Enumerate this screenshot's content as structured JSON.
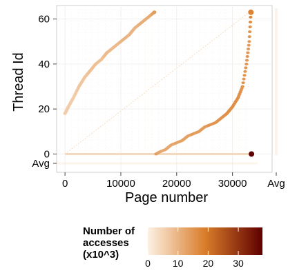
{
  "chart_data": {
    "type": "scatter",
    "xlabel": "Page number",
    "ylabel": "Thread Id",
    "x_ticks": [
      "0",
      "10000",
      "20000",
      "30000"
    ],
    "x_tick_values": [
      0,
      10000,
      20000,
      30000
    ],
    "x_summary_label": "Avg",
    "y_ticks": [
      "0",
      "20",
      "40",
      "60"
    ],
    "y_tick_values": [
      0,
      20,
      40,
      60
    ],
    "y_summary_label": "Avg",
    "xlim": [
      -1500,
      34500
    ],
    "ylim": [
      -2,
      66
    ],
    "grid": true,
    "legend": {
      "title": [
        "Number of",
        "accesses",
        "(x10^3)"
      ],
      "ticks": [
        "0",
        "10",
        "20",
        "30"
      ],
      "tick_values": [
        0,
        10,
        20,
        30
      ],
      "range": [
        0,
        38
      ],
      "placement": "bottom"
    },
    "colors": {
      "low": "#fdf1e4",
      "mid": "#d97d2a",
      "high": "#5e0000",
      "grid": "#f0f0f0",
      "panel_border": "#cfcfcf"
    },
    "series": [
      {
        "description_points": [
          [
            0,
            18,
            6
          ],
          [
            600,
            21,
            6
          ],
          [
            1500,
            25,
            6
          ],
          [
            2500,
            30,
            7
          ],
          [
            3500,
            34,
            7
          ],
          [
            4500,
            37,
            8
          ],
          [
            5500,
            40,
            8
          ],
          [
            6500,
            42,
            8
          ],
          [
            7500,
            45,
            9
          ],
          [
            8500,
            47,
            9
          ],
          [
            9500,
            49,
            9
          ],
          [
            10500,
            51,
            10
          ],
          [
            11500,
            53,
            10
          ],
          [
            12500,
            56,
            10
          ],
          [
            13500,
            58,
            11
          ],
          [
            14500,
            60,
            11
          ],
          [
            15500,
            62,
            12
          ],
          [
            16000,
            63,
            14
          ]
        ]
      },
      {
        "description_points": [
          [
            16300,
            0,
            14
          ],
          [
            17000,
            1,
            12
          ],
          [
            18000,
            2,
            12
          ],
          [
            19000,
            4,
            12
          ],
          [
            20000,
            5,
            13
          ],
          [
            21000,
            6,
            13
          ],
          [
            22000,
            8,
            13
          ],
          [
            23000,
            9,
            14
          ],
          [
            24000,
            10,
            14
          ],
          [
            25000,
            12,
            14
          ],
          [
            26000,
            13,
            15
          ],
          [
            27000,
            14,
            15
          ],
          [
            28000,
            16,
            15
          ],
          [
            29000,
            18,
            16
          ],
          [
            30000,
            21,
            16
          ],
          [
            31000,
            25,
            16
          ],
          [
            31800,
            30,
            15
          ],
          [
            32500,
            40,
            15
          ],
          [
            33000,
            50,
            14
          ],
          [
            33300,
            63,
            18
          ]
        ]
      },
      {
        "description_points": [
          [
            33400,
            0,
            38
          ]
        ]
      }
    ],
    "bottom_band": {
      "y": 0,
      "x_from": 0,
      "x_to": 33500,
      "value": 4
    },
    "avg_column_value": 3
  }
}
